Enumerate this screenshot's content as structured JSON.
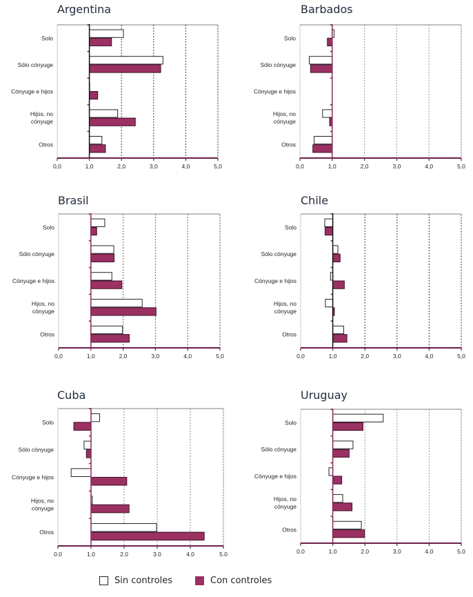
{
  "legend": {
    "items": [
      {
        "label": "Sin controles",
        "color": "#ffffff"
      },
      {
        "label": "Con controles",
        "color": "#9b3163"
      }
    ]
  },
  "colors": {
    "con_controles": "#9b3163",
    "sin_controles": "#ffffff",
    "axis": "#6b1f45"
  },
  "chart_data": [
    {
      "type": "bar",
      "orientation": "horizontal",
      "title": "Argentina",
      "categories": [
        "Solo",
        "Sólo cónyuge",
        "Cónyuge e hijos",
        "Hijos, no|cónyuge",
        "Otros"
      ],
      "baseline": 1.0,
      "xlim": [
        0,
        5
      ],
      "xticks": [
        "0,0",
        "1,0",
        "2,0",
        "3,0",
        "4,0",
        "5,0"
      ],
      "grid": "vertical-dotted",
      "series": [
        {
          "name": "Sin controles",
          "values": [
            2.06,
            3.29,
            1.01,
            1.88,
            1.39
          ]
        },
        {
          "name": "Con controles",
          "values": [
            1.69,
            3.22,
            1.26,
            2.43,
            1.5
          ]
        }
      ]
    },
    {
      "type": "bar",
      "orientation": "horizontal",
      "title": "Barbados",
      "categories": [
        "Solo",
        "Sólo cónyuge",
        "Cónyuge e hijos",
        "Hijos, no|cónyuge",
        "Otros"
      ],
      "baseline": 1.0,
      "xlim": [
        0,
        5
      ],
      "xticks": [
        "0,0",
        "1,0",
        "2,0",
        "3,0",
        "4,0",
        "5,0"
      ],
      "grid": "vertical-dotted",
      "series": [
        {
          "name": "Sin controles",
          "values": [
            1.06,
            0.29,
            1.0,
            0.7,
            0.44
          ]
        },
        {
          "name": "Con controles",
          "values": [
            0.85,
            0.33,
            1.0,
            0.92,
            0.4
          ]
        }
      ]
    },
    {
      "type": "bar",
      "orientation": "horizontal",
      "title": "Brasil",
      "categories": [
        "Solo",
        "Sólo cónyuge",
        "Cónyuge e hijos",
        "Hijos, no|cónyuge",
        "Otros"
      ],
      "baseline": 1.0,
      "xlim": [
        0,
        5
      ],
      "xticks": [
        "0,0",
        "1,0",
        "2,0",
        "3,0",
        "4,0",
        "5,0"
      ],
      "grid": "vertical-dotted",
      "series": [
        {
          "name": "Sin controles",
          "values": [
            1.43,
            1.71,
            1.65,
            2.59,
            1.98
          ]
        },
        {
          "name": "Con controles",
          "values": [
            1.18,
            1.72,
            1.96,
            3.02,
            2.19
          ]
        }
      ]
    },
    {
      "type": "bar",
      "orientation": "horizontal",
      "title": "Chile",
      "categories": [
        "Solo",
        "Sólo cónyuge",
        "Cónyuge e hijos",
        "Hijos, no|cónyuge",
        "Otros"
      ],
      "baseline": 1.0,
      "xlim": [
        0,
        5
      ],
      "xticks": [
        "0,0",
        "1,0",
        "2,0",
        "3,0",
        "4,0",
        "5,0"
      ],
      "grid": "vertical-dotted",
      "series": [
        {
          "name": "Sin controles",
          "values": [
            0.75,
            1.16,
            0.93,
            0.77,
            1.34
          ]
        },
        {
          "name": "Con controles",
          "values": [
            0.76,
            1.23,
            1.36,
            1.05,
            1.44
          ]
        }
      ]
    },
    {
      "type": "bar",
      "orientation": "horizontal",
      "title": "Cuba",
      "categories": [
        "Solo",
        "Sólo cónyuge",
        "Cónyuge e hijos",
        "Hijos, no|cónyuge",
        "Otros"
      ],
      "baseline": 1.0,
      "xlim": [
        0,
        5
      ],
      "xticks": [
        "0.0",
        "1.0",
        "2.0",
        "3.0",
        "4.0",
        "5.0"
      ],
      "grid": "vertical-dotted",
      "series": [
        {
          "name": "Sin controles",
          "values": [
            1.26,
            0.79,
            0.4,
            1.04,
            2.98
          ]
        },
        {
          "name": "Con controles",
          "values": [
            0.48,
            0.86,
            2.08,
            2.15,
            4.42
          ]
        }
      ]
    },
    {
      "type": "bar",
      "orientation": "horizontal",
      "title": "Uruguay",
      "categories": [
        "Solo",
        "Sólo cónyuge",
        "Cónyuge e hijos",
        "Hijos, no|cónyuge",
        "Otros"
      ],
      "baseline": 1.0,
      "xlim": [
        0,
        5
      ],
      "xticks": [
        "0.0",
        "1.0",
        "2.0",
        "3.0",
        "4.0",
        "5.0"
      ],
      "grid": "vertical-dotted",
      "series": [
        {
          "name": "Sin controles",
          "values": [
            2.57,
            1.63,
            0.88,
            1.31,
            1.89
          ]
        },
        {
          "name": "Con controles",
          "values": [
            1.94,
            1.51,
            1.28,
            1.6,
            1.99
          ]
        }
      ]
    }
  ]
}
